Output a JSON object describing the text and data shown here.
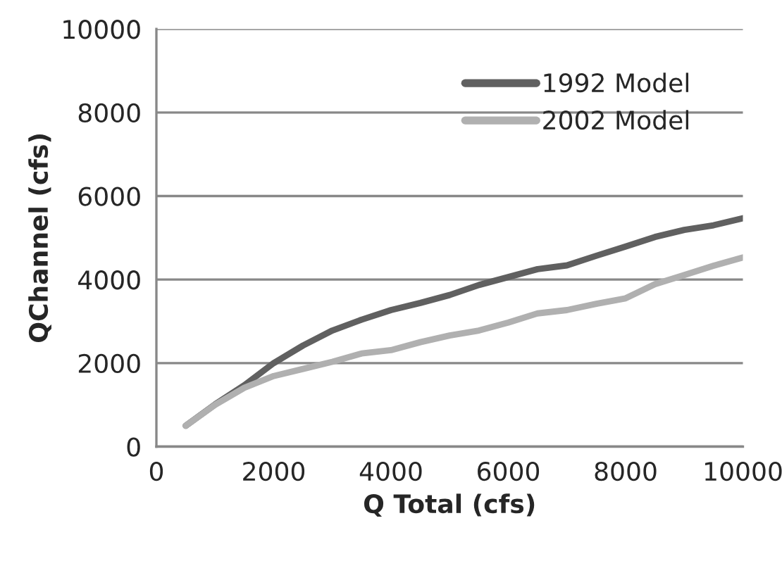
{
  "chart_data": {
    "type": "line",
    "xlabel": "Q Total (cfs)",
    "ylabel": "QChannel (cfs)",
    "x": [
      500,
      1000,
      1500,
      2000,
      2500,
      3000,
      3500,
      4000,
      4500,
      5000,
      5500,
      6000,
      6500,
      7000,
      7500,
      8000,
      8500,
      9000,
      9500,
      10000
    ],
    "series": [
      {
        "name": "1992 Model",
        "color": "#606060",
        "values": [
          500,
          1010,
          1470,
          2000,
          2420,
          2780,
          3040,
          3270,
          3440,
          3630,
          3870,
          4060,
          4250,
          4340,
          4570,
          4790,
          5020,
          5190,
          5300,
          5470
        ]
      },
      {
        "name": "2002 Model",
        "color": "#b0b0b0",
        "values": [
          500,
          1000,
          1410,
          1690,
          1860,
          2030,
          2230,
          2310,
          2500,
          2660,
          2780,
          2970,
          3190,
          3270,
          3420,
          3550,
          3890,
          4110,
          4330,
          4530
        ]
      }
    ],
    "xlim": [
      0,
      10000
    ],
    "xticks": [
      0,
      2000,
      4000,
      6000,
      8000,
      10000
    ],
    "ylim": [
      0,
      10000
    ],
    "yticks": [
      0,
      2000,
      4000,
      6000,
      8000,
      10000
    ],
    "grid": "y",
    "legend": "top right",
    "marker": "none",
    "line_style": "solid"
  }
}
